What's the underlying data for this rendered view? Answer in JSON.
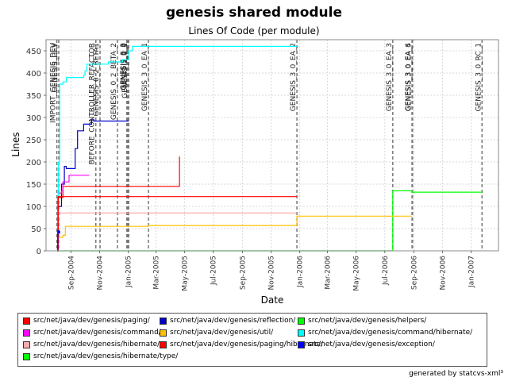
{
  "chart_data": {
    "type": "line",
    "title": "genesis shared module",
    "subtitle": "Lines Of Code (per module)",
    "xlabel": "Date",
    "ylabel": "Lines",
    "x_range": [
      "2004-07-10",
      "2007-02-28"
    ],
    "ylim": [
      0,
      475
    ],
    "y_ticks": [
      0,
      50,
      100,
      150,
      200,
      250,
      300,
      350,
      400,
      450
    ],
    "x_ticks": [
      {
        "date": "2004-09-01",
        "label": "Sep-2004"
      },
      {
        "date": "2004-11-01",
        "label": "Nov-2004"
      },
      {
        "date": "2005-01-01",
        "label": "Jan-2005"
      },
      {
        "date": "2005-03-01",
        "label": "Mar-2005"
      },
      {
        "date": "2005-05-01",
        "label": "May-2005"
      },
      {
        "date": "2005-07-01",
        "label": "Jul-2005"
      },
      {
        "date": "2005-09-01",
        "label": "Sep-2005"
      },
      {
        "date": "2005-11-01",
        "label": "Nov-2005"
      },
      {
        "date": "2006-01-01",
        "label": "Jan-2006"
      },
      {
        "date": "2006-03-01",
        "label": "Mar-2006"
      },
      {
        "date": "2006-05-01",
        "label": "May-2006"
      },
      {
        "date": "2006-07-01",
        "label": "Jul-2006"
      },
      {
        "date": "2006-09-01",
        "label": "Sep-2006"
      },
      {
        "date": "2006-11-01",
        "label": "Nov-2006"
      },
      {
        "date": "2007-01-01",
        "label": "Jan-2007"
      }
    ],
    "grid": true,
    "legend_position": "bottom",
    "markers": [
      {
        "date": "2004-08-02",
        "label": "IMPORT_GENESIS_DEV"
      },
      {
        "date": "2004-08-06",
        "label": "GENESIS_DEV"
      },
      {
        "date": "2004-10-24",
        "label": "BEFORE_CONTROLLER_REFACTOR"
      },
      {
        "date": "2004-11-02",
        "label": "GENESIS_0_2_BETA1"
      },
      {
        "date": "2004-12-09",
        "label": "GENESIS_0_2_BETA_2"
      },
      {
        "date": "2004-12-29",
        "label": "GENESIS_0_2"
      },
      {
        "date": "2004-12-31",
        "label": "GENESIS_1_0"
      },
      {
        "date": "2005-01-02",
        "label": "GENESIS_1_0_1"
      },
      {
        "date": "2005-02-13",
        "label": "GENESIS_3_0_EA_1"
      },
      {
        "date": "2005-12-26",
        "label": "GENESIS_3_0_EA_2"
      },
      {
        "date": "2006-07-18",
        "label": "GENESIS_3_0_EA_3"
      },
      {
        "date": "2006-08-28",
        "label": "GENESIS_3_0_EA_4"
      },
      {
        "date": "2006-08-29",
        "label": "GENESIS_3_0_EA_5"
      },
      {
        "date": "2007-01-24",
        "label": "GENESIS_3_0_RC_1"
      }
    ],
    "series": [
      {
        "name": "src/net/java/dev/genesis/paging/",
        "color": "#ff0000",
        "points": [
          [
            "2004-08-03",
            0
          ],
          [
            "2004-08-04",
            120
          ],
          [
            "2004-08-15",
            145
          ],
          [
            "2005-04-20",
            145
          ],
          [
            "2005-04-20",
            212
          ]
        ]
      },
      {
        "name": "src/net/java/dev/genesis/reflection/",
        "color": "#0000cc",
        "points": [
          [
            "2004-08-03",
            0
          ],
          [
            "2004-08-05",
            100
          ],
          [
            "2004-08-12",
            150
          ],
          [
            "2004-08-18",
            190
          ],
          [
            "2004-08-22",
            185
          ],
          [
            "2004-09-10",
            185
          ],
          [
            "2004-09-10",
            230
          ],
          [
            "2004-09-15",
            270
          ],
          [
            "2004-09-28",
            285
          ],
          [
            "2004-10-15",
            295
          ],
          [
            "2004-10-20",
            292
          ],
          [
            "2004-11-10",
            292
          ],
          [
            "2005-01-02",
            292
          ]
        ]
      },
      {
        "name": "src/net/java/dev/genesis/helpers/",
        "color": "#00ff00",
        "points": [
          [
            "2006-07-18",
            0
          ],
          [
            "2006-07-18",
            135
          ],
          [
            "2006-08-28",
            135
          ],
          [
            "2006-08-28",
            132
          ],
          [
            "2007-01-24",
            132
          ]
        ]
      },
      {
        "name": "src/net/java/dev/genesis/command/",
        "color": "#ff00ff",
        "points": [
          [
            "2004-08-03",
            0
          ],
          [
            "2004-08-05",
            130
          ],
          [
            "2004-08-12",
            135
          ],
          [
            "2004-08-15",
            155
          ],
          [
            "2004-08-28",
            170
          ],
          [
            "2004-10-10",
            170
          ]
        ]
      },
      {
        "name": "src/net/java/dev/genesis/util/",
        "color": "#ffc000",
        "points": [
          [
            "2004-08-03",
            0
          ],
          [
            "2004-08-05",
            30
          ],
          [
            "2004-08-15",
            35
          ],
          [
            "2004-08-20",
            55
          ],
          [
            "2005-02-13",
            57
          ],
          [
            "2005-12-26",
            58
          ],
          [
            "2005-12-26",
            78
          ],
          [
            "2006-08-28",
            78
          ]
        ]
      },
      {
        "name": "src/net/java/dev/genesis/command/hibernate/",
        "color": "#00ffff",
        "points": [
          [
            "2004-08-03",
            0
          ],
          [
            "2004-08-05",
            200
          ],
          [
            "2004-08-08",
            375
          ],
          [
            "2004-08-15",
            380
          ],
          [
            "2004-08-22",
            390
          ],
          [
            "2004-09-28",
            395
          ],
          [
            "2004-10-01",
            405
          ],
          [
            "2004-10-05",
            420
          ],
          [
            "2004-11-02",
            420
          ],
          [
            "2004-11-20",
            425
          ],
          [
            "2004-12-20",
            430
          ],
          [
            "2005-01-02",
            450
          ],
          [
            "2005-01-10",
            460
          ],
          [
            "2005-12-26",
            460
          ]
        ]
      },
      {
        "name": "src/net/java/dev/genesis/hibernate/",
        "color": "#ffaaaa",
        "points": [
          [
            "2004-08-03",
            85
          ],
          [
            "2005-12-26",
            85
          ]
        ]
      },
      {
        "name": "src/net/java/dev/genesis/paging/hibernate/",
        "color": "#ff0000",
        "points": [
          [
            "2004-08-03",
            0
          ],
          [
            "2004-08-05",
            122
          ],
          [
            "2005-12-26",
            122
          ]
        ]
      },
      {
        "name": "src/net/java/dev/genesis/exception/",
        "color": "#0000ff",
        "points": [
          [
            "2004-08-03",
            0
          ],
          [
            "2004-08-04",
            45
          ],
          [
            "2004-08-06",
            40
          ],
          [
            "2004-08-08",
            45
          ]
        ]
      },
      {
        "name": "src/net/java/dev/genesis/hibernate/type/",
        "color": "#00ff00",
        "points": [
          [
            "2004-08-02",
            0
          ],
          [
            "2006-07-18",
            0
          ]
        ]
      }
    ]
  },
  "legend_entries": [
    {
      "label": "src/net/java/dev/genesis/paging/",
      "color": "#ff0000"
    },
    {
      "label": "src/net/java/dev/genesis/reflection/",
      "color": "#0000cc"
    },
    {
      "label": "src/net/java/dev/genesis/helpers/",
      "color": "#00ff00"
    },
    {
      "label": "src/net/java/dev/genesis/command/",
      "color": "#ff00ff"
    },
    {
      "label": "src/net/java/dev/genesis/util/",
      "color": "#ffc000"
    },
    {
      "label": "src/net/java/dev/genesis/command/hibernate/",
      "color": "#00ffff"
    },
    {
      "label": "src/net/java/dev/genesis/hibernate/",
      "color": "#ffaaaa"
    },
    {
      "label": "src/net/java/dev/genesis/paging/hibernate/",
      "color": "#ff0000"
    },
    {
      "label": "src/net/java/dev/genesis/exception/",
      "color": "#0000ff"
    },
    {
      "label": "src/net/java/dev/genesis/hibernate/type/",
      "color": "#00ff00"
    }
  ],
  "footer": {
    "credit": "generated by statcvs-xml³"
  }
}
